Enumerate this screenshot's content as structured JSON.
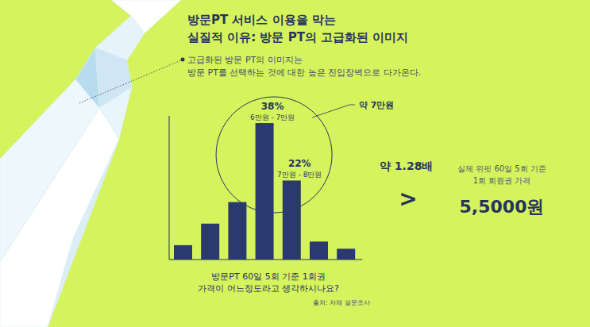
{
  "chart_data": {
    "type": "bar",
    "title": [
      "방문PT 서비스 이용을 막는",
      "실질적 이유: 방문 PT의 고급화된 이미지"
    ],
    "subtitle": [
      "고급화된 방문 PT의 이미지는",
      "방문 PT를 선택하는 것에 대한 높은 진입장벽으로 다가온다."
    ],
    "x_label": [
      "방문PT 60일 5회 기준 1회권",
      "가격이 어느정도라고 생각하시나요?"
    ],
    "source": "출처: 자체 설문조사",
    "categories": [
      null,
      null,
      null,
      "6만원 - 7만원",
      "7만원 - 8만원",
      null,
      null
    ],
    "values": [
      4,
      10,
      16,
      38,
      22,
      5,
      3
    ],
    "value_labels": [
      null,
      null,
      null,
      "38%",
      "22%",
      null,
      null
    ],
    "data_labels": true,
    "color": "#2b3a6e",
    "ylim": [
      0,
      40
    ],
    "tick_labels": false,
    "annotations": [
      {
        "text": "약 7만원"
      },
      {
        "text": "약 1.28배"
      },
      {
        "text": ">"
      },
      {
        "text": "실제 위핏 60일 5회 기준"
      },
      {
        "text": "1회 회원권 가격"
      },
      {
        "text": "5,5000원"
      }
    ]
  }
}
